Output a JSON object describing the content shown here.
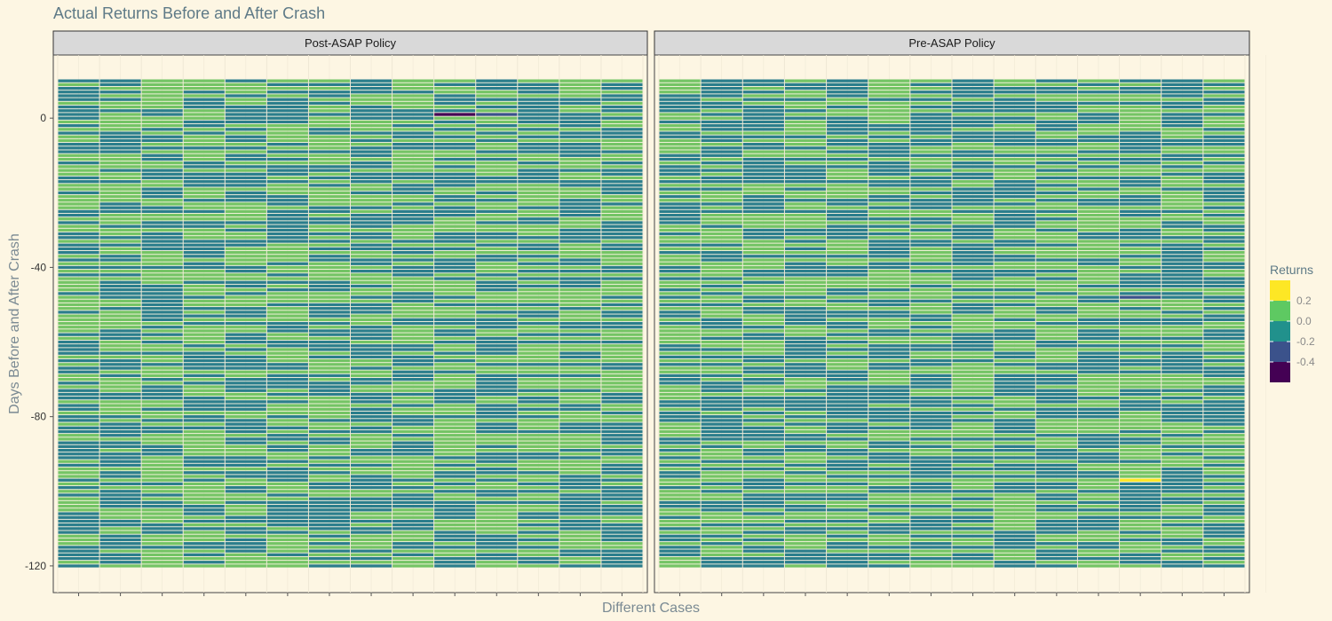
{
  "chart_data": {
    "type": "heatmap",
    "title": "Actual Returns Before and After Crash",
    "xlabel": "Different Cases",
    "ylabel": "Days Before and After Crash",
    "ylim": [
      -120,
      10
    ],
    "y_ticks": [
      0,
      -40,
      -80,
      -120
    ],
    "n_cases_per_panel": 14,
    "panels": [
      {
        "label": "Post-ASAP Policy",
        "highlights": [
          {
            "case": 10,
            "day": 1,
            "value": -0.45
          },
          {
            "case": 11,
            "day": 1,
            "value": -0.3
          }
        ]
      },
      {
        "label": "Pre-ASAP Policy",
        "highlights": [
          {
            "case": 12,
            "day": -48,
            "value": -0.25
          },
          {
            "case": 12,
            "day": -97,
            "value": 0.25
          }
        ]
      }
    ],
    "legend": {
      "title": "Returns",
      "position": "right",
      "labels": [
        "0.2",
        "0.0",
        "-0.2",
        "-0.4"
      ],
      "colors": [
        "#fde725",
        "#5ec962",
        "#21918c",
        "#3b528b",
        "#440154"
      ],
      "breaks": [
        0.3,
        0.1,
        -0.1,
        -0.3,
        -0.5
      ]
    },
    "colors": {
      "green": "#74c465",
      "teal": "#2b7e8c",
      "panel_bg": "#fdf6e3",
      "strip_bg": "#d9d9d9",
      "grid": "#efe8d5"
    }
  }
}
